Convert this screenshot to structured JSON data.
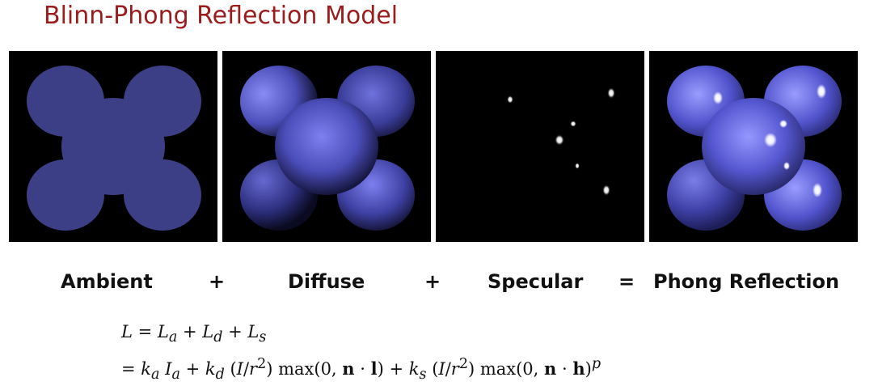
{
  "title": "Blinn-Phong Reflection Model",
  "terms": {
    "ambient": "Ambient",
    "plus1": "+",
    "diffuse": "Diffuse",
    "plus2": "+",
    "specular": "Specular",
    "equals": "=",
    "phong": "Phong Reflection"
  },
  "equation": {
    "line1": "L = L_a + L_d + L_s",
    "line2": "= k_a I_a + k_d (I/r^2) max(0, n · l) + k_s (I/r^2) max(0, n · h)^p"
  },
  "colors": {
    "title": "#9b1c1c",
    "ambient_fill": "#3d3f86",
    "diffuse_light": "#7e80f0",
    "diffuse_dark": "#101030",
    "highlight": "#ffffff"
  }
}
